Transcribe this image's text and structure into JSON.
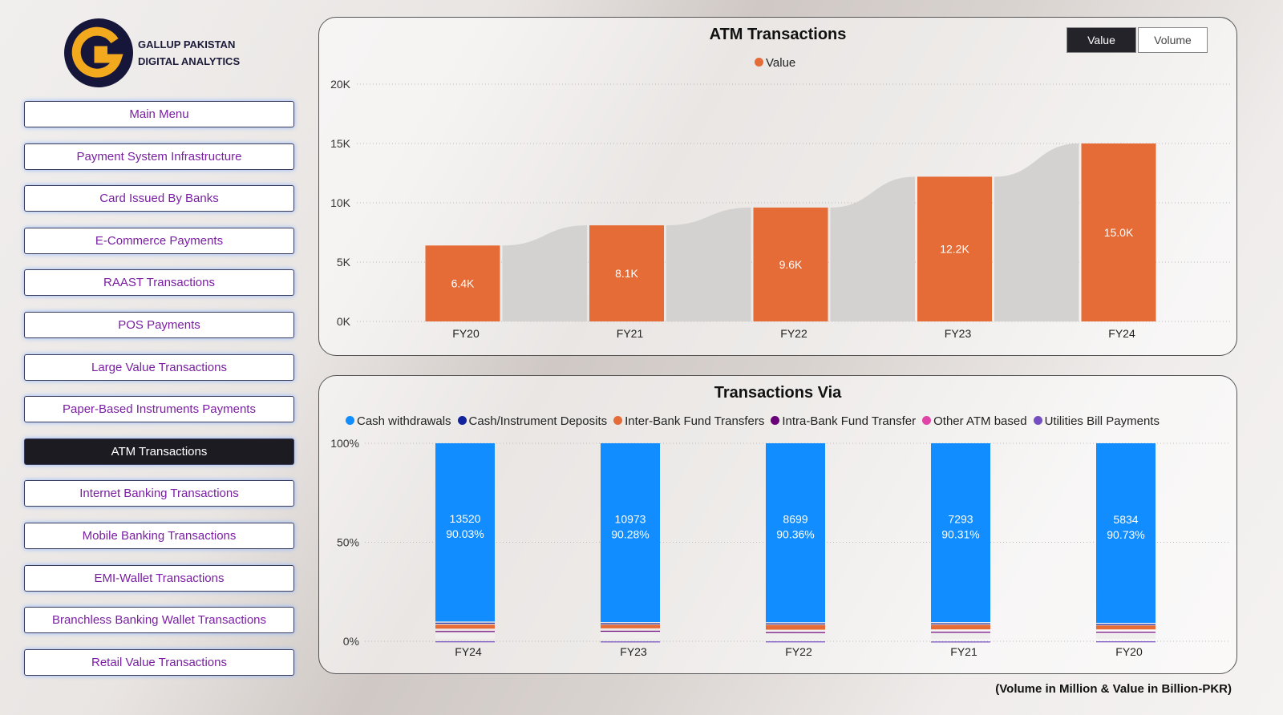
{
  "logo": {
    "line1": "GALLUP PAKISTAN",
    "line2": "DIGITAL ANALYTICS"
  },
  "nav": [
    {
      "label": "Main Menu",
      "active": false
    },
    {
      "label": "Payment System Infrastructure",
      "active": false
    },
    {
      "label": "Card Issued By Banks",
      "active": false
    },
    {
      "label": "E-Commerce Payments",
      "active": false
    },
    {
      "label": "RAAST Transactions",
      "active": false
    },
    {
      "label": "POS Payments",
      "active": false
    },
    {
      "label": "Large Value Transactions",
      "active": false
    },
    {
      "label": "Paper-Based Instruments Payments",
      "active": false
    },
    {
      "label": "ATM Transactions",
      "active": true
    },
    {
      "label": "Internet Banking Transactions",
      "active": false
    },
    {
      "label": "Mobile Banking Transactions",
      "active": false
    },
    {
      "label": "EMI-Wallet Transactions",
      "active": false
    },
    {
      "label": "Branchless Banking Wallet Transactions",
      "active": false
    },
    {
      "label": "Retail Value Transactions",
      "active": false
    }
  ],
  "toggle": {
    "value": "Value",
    "volume": "Volume"
  },
  "footnote": "(Volume in Million & Value in Billion-PKR)",
  "chart_data": [
    {
      "type": "bar",
      "title": "ATM Transactions",
      "legend": [
        {
          "name": "Value",
          "color": "#e66c37"
        }
      ],
      "categories": [
        "FY20",
        "FY21",
        "FY22",
        "FY23",
        "FY24"
      ],
      "values": [
        6400,
        8100,
        9600,
        12200,
        15000
      ],
      "labels": [
        "6.4K",
        "8.1K",
        "9.6K",
        "12.2K",
        "15.0K"
      ],
      "yticks": [
        "0K",
        "5K",
        "10K",
        "15K",
        "20K"
      ],
      "ylim": [
        0,
        20000
      ]
    },
    {
      "type": "bar",
      "stacked": "100%",
      "title": "Transactions Via",
      "categories": [
        "FY24",
        "FY23",
        "FY22",
        "FY21",
        "FY20"
      ],
      "series": [
        {
          "name": "Cash withdrawals",
          "color": "#118dff",
          "values": [
            90.03,
            90.28,
            90.36,
            90.31,
            90.73
          ],
          "labels": [
            "13520",
            "10973",
            "8699",
            "7293",
            "5834"
          ]
        },
        {
          "name": "Cash/Instrument Deposits",
          "color": "#12239e",
          "values": [
            1.0,
            0.8,
            0.8,
            0.8,
            0.7
          ]
        },
        {
          "name": "Inter-Bank Fund Transfers",
          "color": "#e66c37",
          "values": [
            3.2,
            3.0,
            3.6,
            3.5,
            3.2
          ]
        },
        {
          "name": "Intra-Bank Fund Transfer",
          "color": "#6b007b",
          "values": [
            0.8,
            0.9,
            0.7,
            0.7,
            1.0
          ]
        },
        {
          "name": "Other ATM based",
          "color": "#e044a7",
          "values": [
            4.4,
            4.5,
            4.0,
            4.2,
            3.8
          ]
        },
        {
          "name": "Utilities Bill Payments",
          "color": "#744ec2",
          "values": [
            0.57,
            0.52,
            0.54,
            0.49,
            0.57
          ]
        }
      ],
      "yticks": [
        "0%",
        "50%",
        "100%"
      ]
    }
  ]
}
